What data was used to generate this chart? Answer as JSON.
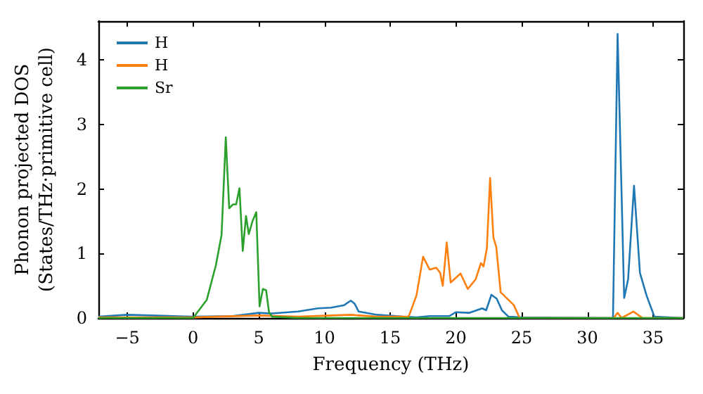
{
  "chart_data": {
    "type": "line",
    "xlabel": "Frequency (THz)",
    "ylabel": "Phonon projected DOS\n(States/THz·primitive cell)",
    "xlim": [
      -7.2,
      37.3
    ],
    "xticks": [
      -5,
      0,
      5,
      10,
      15,
      20,
      25,
      30,
      35
    ],
    "ylim": [
      0,
      4.6
    ],
    "yticks": [
      0,
      1,
      2,
      3,
      4
    ],
    "grid": false,
    "legend": "top left",
    "marker": "none",
    "line_style": "solid",
    "series": [
      {
        "name": "H",
        "color": "#1f77b4",
        "x": [
          -7.2,
          -5,
          0,
          3,
          5,
          6,
          8,
          9.5,
          10.5,
          11.5,
          12,
          12.3,
          12.6,
          14,
          16,
          17,
          18,
          19.5,
          20,
          21,
          22,
          22.3,
          22.7,
          23.1,
          23.5,
          24,
          25,
          31.95,
          32.3,
          32.8,
          33.1,
          33.55,
          34,
          34.5,
          35.1,
          37.3
        ],
        "values": [
          0.02,
          0.05,
          0.02,
          0.03,
          0.08,
          0.07,
          0.1,
          0.15,
          0.16,
          0.2,
          0.27,
          0.22,
          0.1,
          0.05,
          0.02,
          0.01,
          0.03,
          0.03,
          0.09,
          0.08,
          0.15,
          0.12,
          0.36,
          0.3,
          0.12,
          0.02,
          0.01,
          0,
          4.4,
          0.31,
          0.6,
          2.05,
          0.7,
          0.35,
          0.02,
          0
        ]
      },
      {
        "name": "H",
        "color": "#ff7f0e",
        "x": [
          -7.2,
          0,
          5,
          8,
          12,
          14,
          16.4,
          17,
          17.5,
          18,
          18.5,
          18.8,
          19.0,
          19.3,
          19.6,
          20.35,
          20.9,
          21.5,
          21.9,
          22.1,
          22.35,
          22.6,
          22.85,
          23.07,
          23.4,
          24.4,
          24.85,
          32,
          32.3,
          32.6,
          33.5,
          34.2,
          37.3
        ],
        "values": [
          0.01,
          0.01,
          0.04,
          0.02,
          0.05,
          0.02,
          0.02,
          0.35,
          0.95,
          0.75,
          0.78,
          0.7,
          0.5,
          1.17,
          0.55,
          0.69,
          0.45,
          0.6,
          0.85,
          0.8,
          1.07,
          2.17,
          1.25,
          1.1,
          0.4,
          0.2,
          0,
          0,
          0.08,
          0,
          0.1,
          0,
          0
        ]
      },
      {
        "name": "Sr",
        "color": "#2ca02c",
        "x": [
          -7.2,
          0,
          1.04,
          1.74,
          2.17,
          2.49,
          2.75,
          3.03,
          3.28,
          3.53,
          3.78,
          4.03,
          4.24,
          4.52,
          4.81,
          5.06,
          5.31,
          5.56,
          5.78,
          6.02,
          8,
          37.3
        ],
        "values": [
          0,
          0,
          0.28,
          0.82,
          1.29,
          2.8,
          1.7,
          1.76,
          1.76,
          2.01,
          1.04,
          1.58,
          1.3,
          1.5,
          1.64,
          0.18,
          0.45,
          0.43,
          0.09,
          0.02,
          0,
          0
        ]
      }
    ]
  }
}
